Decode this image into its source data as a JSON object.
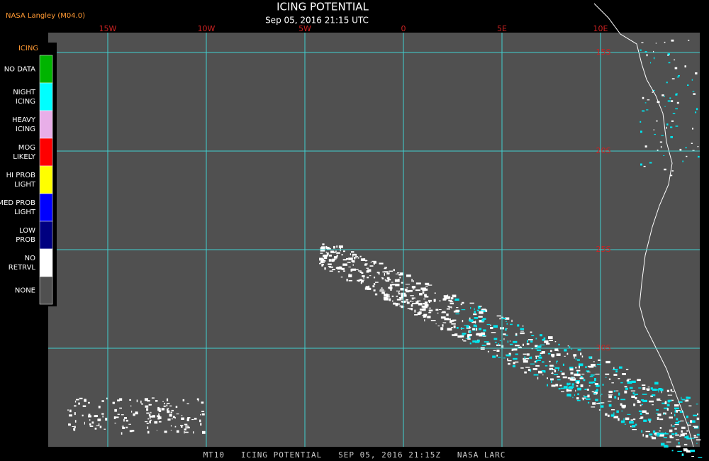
{
  "header": {
    "source": "NASA Langley (M04.0)",
    "title": "ICING POTENTIAL",
    "subtitle": "Sep 05, 2016 21:15 UTC"
  },
  "map": {
    "longitude_labels": [
      "15W",
      "10W",
      "5W",
      "0",
      "5E",
      "10E"
    ],
    "latitude_labels": [
      "15S",
      "20S",
      "25S",
      "30S"
    ]
  },
  "legend": {
    "title": "ICING",
    "items": [
      {
        "lines": [
          "NO DATA"
        ],
        "color": "#00b400"
      },
      {
        "lines": [
          "NIGHT",
          "ICING"
        ],
        "color": "#00ffff"
      },
      {
        "lines": [
          "HEAVY",
          "ICING"
        ],
        "color": "#e8aee8"
      },
      {
        "lines": [
          "MOG",
          "LIKELY"
        ],
        "color": "#ff0000"
      },
      {
        "lines": [
          "HI PROB",
          "LIGHT"
        ],
        "color": "#ffff00"
      },
      {
        "lines": [
          "MED PROB",
          "LIGHT"
        ],
        "color": "#0000ff"
      },
      {
        "lines": [
          "LOW",
          "PROB"
        ],
        "color": "#000080"
      },
      {
        "lines": [
          "NO",
          "RETRVL"
        ],
        "color": "#ffffff"
      },
      {
        "lines": [
          "NONE"
        ],
        "color": "#505050"
      }
    ]
  },
  "footer": "MT10   ICING POTENTIAL   SEP 05, 2016 21:15Z   NASA LARC"
}
